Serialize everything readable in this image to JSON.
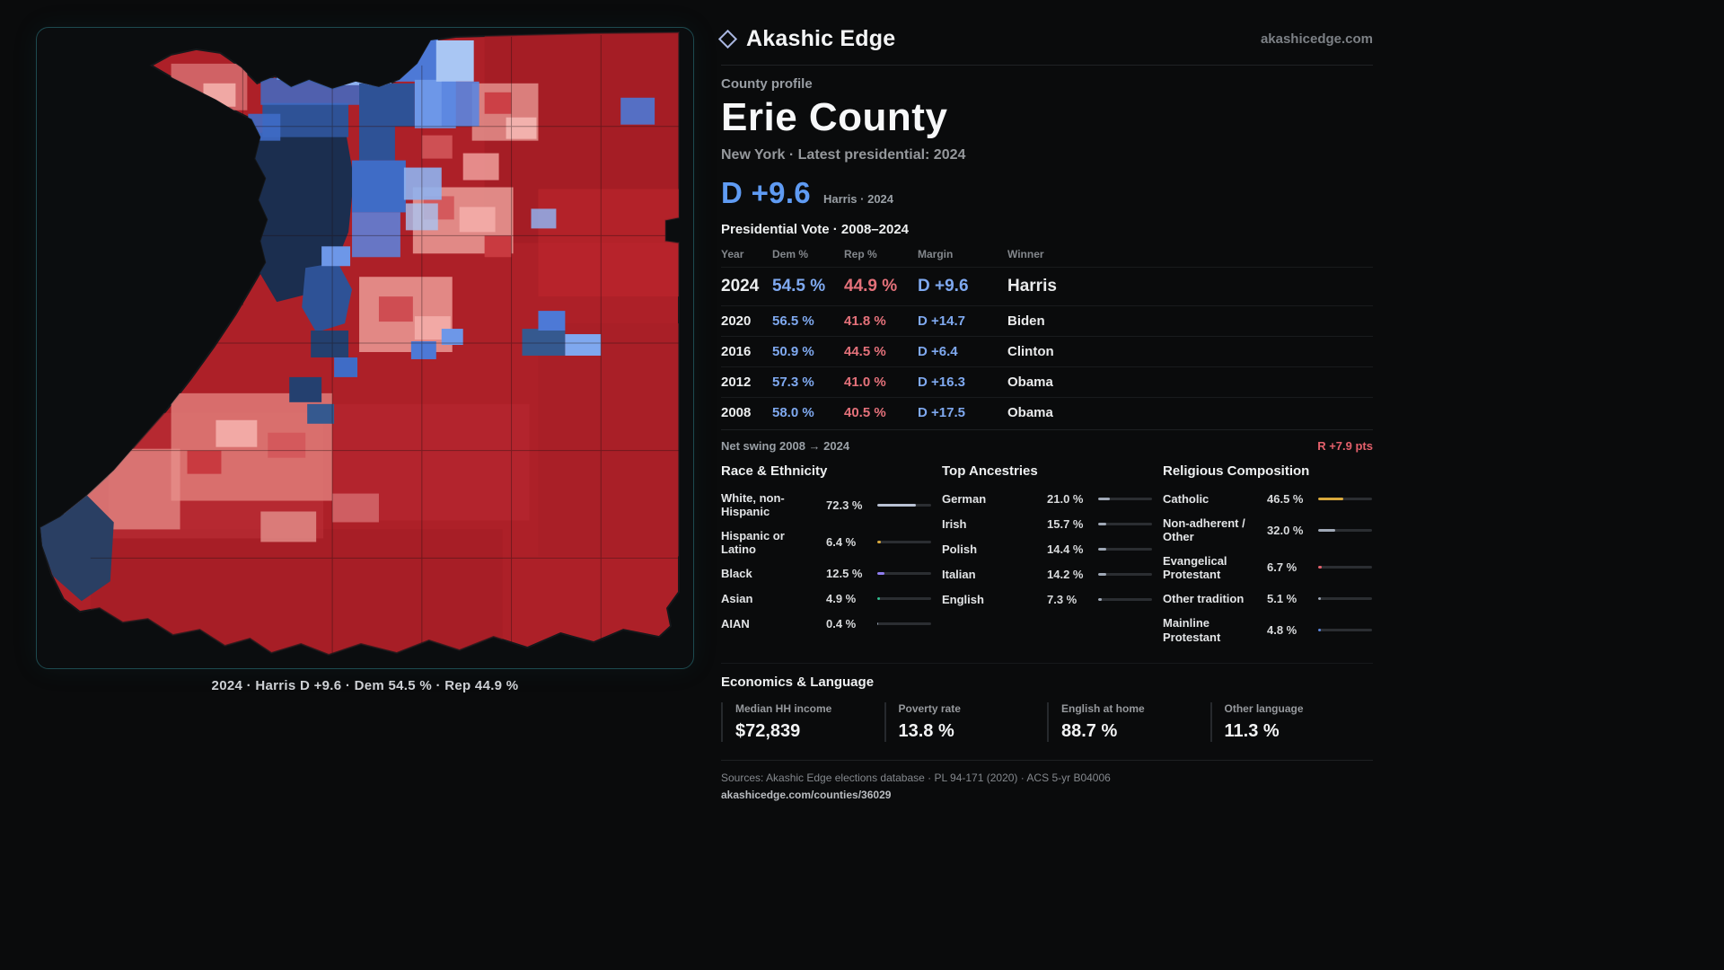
{
  "header": {
    "brand": "Akashic Edge",
    "site": "akashicedge.com"
  },
  "profile": {
    "kicker": "County profile",
    "title": "Erie County",
    "subtitle": "New York · Latest presidential: 2024",
    "margin": "D +9.6",
    "margin_note": "Harris · 2024"
  },
  "map": {
    "caption": "2024 · Harris D +9.6 · Dem 54.5 % · Rep 44.9 %"
  },
  "vote_table": {
    "title": "Presidential Vote · 2008–2024",
    "columns": [
      "Year",
      "Dem %",
      "Rep %",
      "Margin",
      "Winner"
    ],
    "rows": [
      {
        "year": "2024",
        "dem": "54.5 %",
        "rep": "44.9 %",
        "margin": "D +9.6",
        "winner": "Harris"
      },
      {
        "year": "2020",
        "dem": "56.5 %",
        "rep": "41.8 %",
        "margin": "D +14.7",
        "winner": "Biden"
      },
      {
        "year": "2016",
        "dem": "50.9 %",
        "rep": "44.5 %",
        "margin": "D +6.4",
        "winner": "Clinton"
      },
      {
        "year": "2012",
        "dem": "57.3 %",
        "rep": "41.0 %",
        "margin": "D +16.3",
        "winner": "Obama"
      },
      {
        "year": "2008",
        "dem": "58.0 %",
        "rep": "40.5 %",
        "margin": "D +17.5",
        "winner": "Obama"
      }
    ]
  },
  "net_swing": {
    "label": "Net swing 2008 → 2024",
    "value": "R +7.9 pts"
  },
  "race": {
    "title": "Race & Ethnicity",
    "rows": [
      {
        "label": "White, non-Hispanic",
        "value": "72.3 %",
        "pct": 72.3,
        "color": "#b9c2d4"
      },
      {
        "label": "Hispanic or Latino",
        "value": "6.4 %",
        "pct": 6.4,
        "color": "#d9a93c"
      },
      {
        "label": "Black",
        "value": "12.5 %",
        "pct": 12.5,
        "color": "#8f7df0"
      },
      {
        "label": "Asian",
        "value": "4.9 %",
        "pct": 4.9,
        "color": "#2fbf8f"
      },
      {
        "label": "AIAN",
        "value": "0.4 %",
        "pct": 0.4,
        "color": "#9aa3b2"
      }
    ]
  },
  "ancestries": {
    "title": "Top Ancestries",
    "rows": [
      {
        "label": "German",
        "value": "21.0 %",
        "pct": 21.0,
        "color": "#9fa8b6"
      },
      {
        "label": "Irish",
        "value": "15.7 %",
        "pct": 15.7,
        "color": "#9fa8b6"
      },
      {
        "label": "Polish",
        "value": "14.4 %",
        "pct": 14.4,
        "color": "#9fa8b6"
      },
      {
        "label": "Italian",
        "value": "14.2 %",
        "pct": 14.2,
        "color": "#9fa8b6"
      },
      {
        "label": "English",
        "value": "7.3 %",
        "pct": 7.3,
        "color": "#9fa8b6"
      }
    ]
  },
  "religion": {
    "title": "Religious Composition",
    "rows": [
      {
        "label": "Catholic",
        "value": "46.5 %",
        "pct": 46.5,
        "color": "#d9a93c"
      },
      {
        "label": "Non-adherent / Other",
        "value": "32.0 %",
        "pct": 32.0,
        "color": "#9fa8b6"
      },
      {
        "label": "Evangelical Protestant",
        "value": "6.7 %",
        "pct": 6.7,
        "color": "#e4606b"
      },
      {
        "label": "Other tradition",
        "value": "5.1 %",
        "pct": 5.1,
        "color": "#9fa8b6"
      },
      {
        "label": "Mainline Protestant",
        "value": "4.8 %",
        "pct": 4.8,
        "color": "#5b86e0"
      }
    ]
  },
  "economics": {
    "title": "Economics & Language",
    "stats": [
      {
        "label": "Median HH income",
        "value": "$72,839"
      },
      {
        "label": "Poverty rate",
        "value": "13.8 %"
      },
      {
        "label": "English at home",
        "value": "88.7 %"
      },
      {
        "label": "Other language",
        "value": "11.3 %"
      }
    ]
  },
  "footer": {
    "sources": "Sources: Akashic Edge elections database · PL 94-171 (2020) · ACS 5-yr B04006",
    "permalink": "akashicedge.com/counties/36029"
  }
}
